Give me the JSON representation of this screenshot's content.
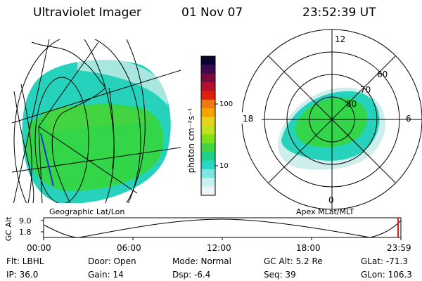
{
  "header": {
    "instrument": "Ultraviolet Imager",
    "date": "01 Nov 07",
    "time": "23:52:39 UT"
  },
  "colorbar": {
    "unit_label": "photon cm⁻²s⁻¹",
    "ticks": [
      "100",
      "10"
    ],
    "colors": [
      "#0a0530",
      "#3c0a50",
      "#7a0a3c",
      "#b5102a",
      "#e0200f",
      "#f07810",
      "#f5a500",
      "#e7d21c",
      "#bde31e",
      "#7fe01a",
      "#45d540",
      "#1fd28c",
      "#2ad6c4",
      "#7fe6df",
      "#c8f0ee",
      "#eef7f6"
    ]
  },
  "geo_panel": {
    "label": "Geographic Lat/Lon"
  },
  "polar_panel": {
    "label": "Apex  MLat/MLT",
    "mlt_labels": {
      "top": "12",
      "left": "18",
      "right": "6",
      "bottom": "0"
    },
    "lat_labels": [
      "60",
      "70",
      "80"
    ]
  },
  "timeline": {
    "axis_label": "GC Alt",
    "y_ticks": [
      "9.0",
      "1.8"
    ],
    "x_ticks": [
      "00:00",
      "06:00",
      "12:00",
      "18:00",
      "23:59"
    ]
  },
  "info": {
    "flt": "Flt: LBHL",
    "ip": "IP: 36.0",
    "door": "Door: Open",
    "gain": "Gain: 14",
    "mode": "Mode: Normal",
    "dsp": "Dsp:    -6.4",
    "gc_alt": "GC Alt: 5.2 Re",
    "seq": "Seq: 39",
    "glat": "GLat: -71.3",
    "glon": "GLon: 106.3"
  },
  "colors": {
    "aurora_green": "#33d648",
    "aurora_cyan": "#27d2bd",
    "aurora_pale": "#c9ece9",
    "map_blue": "#1d33d6",
    "marker_red": "#cc2020"
  }
}
